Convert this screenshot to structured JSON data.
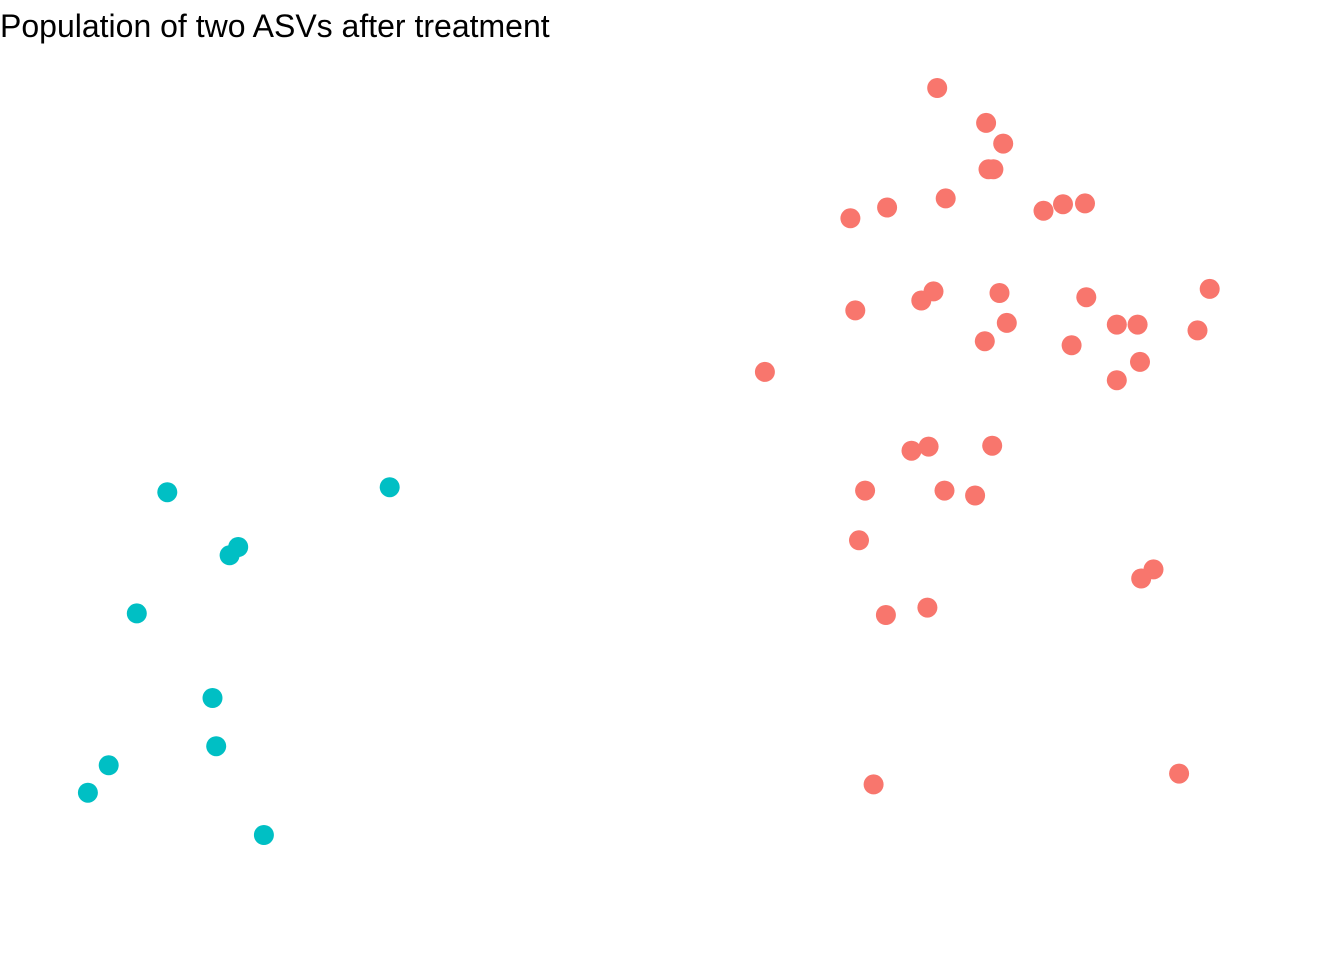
{
  "chart_data": {
    "type": "scatter",
    "title": "Population of two ASVs after treatment",
    "xlabel": "",
    "ylabel": "",
    "grid": false,
    "legend": "none",
    "xlim": [
      0,
      100
    ],
    "ylim": [
      0,
      100
    ],
    "series": [
      {
        "color": "#F8766D",
        "points": [
          [
            71.7,
            100.0
          ],
          [
            75.7,
            95.8
          ],
          [
            77.1,
            93.3
          ],
          [
            75.9,
            90.2
          ],
          [
            76.3,
            90.2
          ],
          [
            72.4,
            86.7
          ],
          [
            67.6,
            85.6
          ],
          [
            64.6,
            84.3
          ],
          [
            80.4,
            85.2
          ],
          [
            82.0,
            86.0
          ],
          [
            83.8,
            86.1
          ],
          [
            94.0,
            75.8
          ],
          [
            71.4,
            75.5
          ],
          [
            70.4,
            74.4
          ],
          [
            76.8,
            75.3
          ],
          [
            83.9,
            74.8
          ],
          [
            65.0,
            73.2
          ],
          [
            77.4,
            71.7
          ],
          [
            86.4,
            71.5
          ],
          [
            88.1,
            71.5
          ],
          [
            93.0,
            70.8
          ],
          [
            75.6,
            69.5
          ],
          [
            82.7,
            69.0
          ],
          [
            57.6,
            65.8
          ],
          [
            88.3,
            67.0
          ],
          [
            86.4,
            64.8
          ],
          [
            71.0,
            56.8
          ],
          [
            69.6,
            56.3
          ],
          [
            76.2,
            56.9
          ],
          [
            65.8,
            51.5
          ],
          [
            72.3,
            51.5
          ],
          [
            74.8,
            50.9
          ],
          [
            65.3,
            45.5
          ],
          [
            89.4,
            42.0
          ],
          [
            88.4,
            40.9
          ],
          [
            70.9,
            37.4
          ],
          [
            67.5,
            36.5
          ],
          [
            91.5,
            17.4
          ],
          [
            66.5,
            16.1
          ]
        ]
      },
      {
        "color": "#00BFC4",
        "points": [
          [
            26.9,
            51.9
          ],
          [
            8.7,
            51.3
          ],
          [
            14.5,
            44.7
          ],
          [
            13.8,
            43.7
          ],
          [
            6.2,
            36.7
          ],
          [
            12.4,
            26.5
          ],
          [
            12.7,
            20.7
          ],
          [
            3.9,
            18.4
          ],
          [
            2.2,
            15.1
          ],
          [
            16.6,
            10.0
          ]
        ]
      }
    ]
  }
}
